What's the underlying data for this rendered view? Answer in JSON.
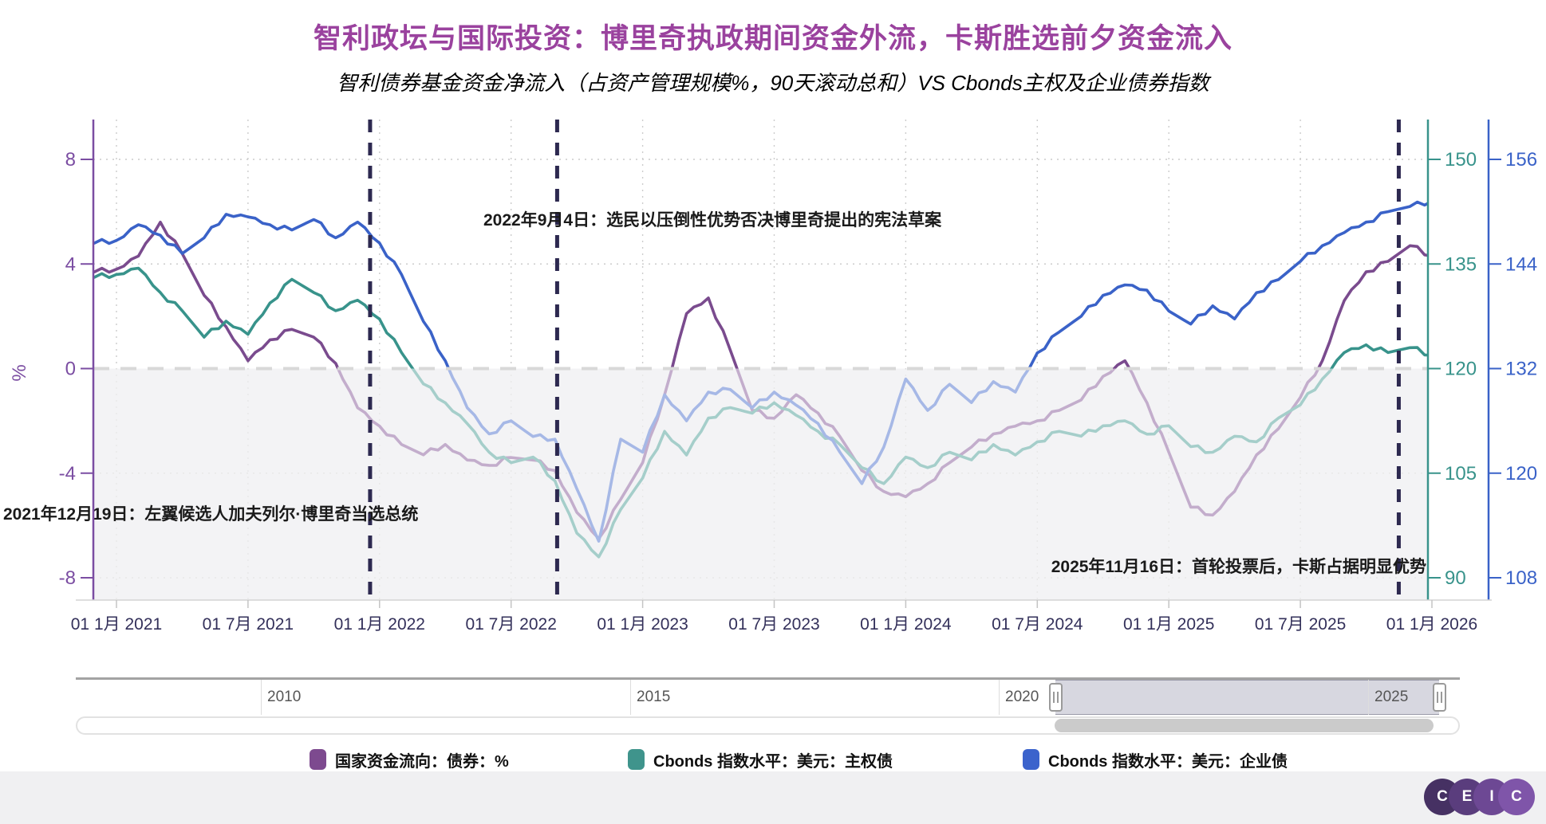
{
  "header": {
    "title": "智利政坛与国际投资：博里奇执政期间资金外流，卡斯胜选前夕资金流入",
    "subtitle": "智利债券基金资金净流入（占资产管理规模%，90天滚动总和）VS Cbonds主权及企业债券指数"
  },
  "chart_data": {
    "type": "line",
    "title": "智利债券基金资金净流入 VS Cbonds 指数",
    "months": [
      "2020-12",
      "2021-01",
      "2021-02",
      "2021-03",
      "2021-04",
      "2021-05",
      "2021-06",
      "2021-07",
      "2021-08",
      "2021-09",
      "2021-10",
      "2021-11",
      "2021-12",
      "2022-01",
      "2022-02",
      "2022-03",
      "2022-04",
      "2022-05",
      "2022-06",
      "2022-07",
      "2022-08",
      "2022-09",
      "2022-10",
      "2022-11",
      "2022-12",
      "2023-01",
      "2023-02",
      "2023-03",
      "2023-04",
      "2023-05",
      "2023-06",
      "2023-07",
      "2023-08",
      "2023-09",
      "2023-10",
      "2023-11",
      "2023-12",
      "2024-01",
      "2024-02",
      "2024-03",
      "2024-04",
      "2024-05",
      "2024-06",
      "2024-07",
      "2024-08",
      "2024-09",
      "2024-10",
      "2024-11",
      "2024-12",
      "2025-01",
      "2025-02",
      "2025-03",
      "2025-04",
      "2025-05",
      "2025-06",
      "2025-07",
      "2025-08",
      "2025-09",
      "2025-10",
      "2025-11",
      "2025-12",
      "2026-01"
    ],
    "series": [
      {
        "name": "国家资金流向：债券：%",
        "axis": "left",
        "color": "#7a4b8e",
        "values": [
          3.7,
          3.8,
          4.3,
          5.6,
          4.4,
          2.8,
          1.6,
          0.3,
          1.1,
          1.5,
          1.2,
          0.2,
          -1.5,
          -2.2,
          -2.9,
          -3.3,
          -2.9,
          -3.5,
          -3.7,
          -3.4,
          -3.5,
          -3.9,
          -5.5,
          -6.5,
          -5.0,
          -3.6,
          -1.0,
          2.1,
          2.7,
          0.7,
          -1.6,
          -1.9,
          -1.0,
          -1.7,
          -2.6,
          -3.9,
          -4.7,
          -4.9,
          -4.4,
          -3.6,
          -3.0,
          -2.5,
          -2.2,
          -2.0,
          -1.6,
          -1.2,
          -0.3,
          0.3,
          -1.3,
          -3.2,
          -5.3,
          -5.6,
          -4.7,
          -3.3,
          -2.3,
          -1.1,
          0.3,
          2.6,
          3.7,
          4.1,
          4.7,
          4.3
        ]
      },
      {
        "name": "Cbonds 指数水平：美元：主权债",
        "axis": "right_sovereign",
        "color": "#38938b",
        "values": [
          133.1,
          133.5,
          134.4,
          130.9,
          128.3,
          124.5,
          126.8,
          124.9,
          129.4,
          132.8,
          130.9,
          128.3,
          129.8,
          127.1,
          122.3,
          117.8,
          115.1,
          112.1,
          108.0,
          106.5,
          107.3,
          103.9,
          96.4,
          93.0,
          99.8,
          104.3,
          111.0,
          107.6,
          112.9,
          114.4,
          113.6,
          115.1,
          113.3,
          111.0,
          109.1,
          105.8,
          103.5,
          107.3,
          105.8,
          108.0,
          106.9,
          109.1,
          107.6,
          109.5,
          111.0,
          110.3,
          111.8,
          112.5,
          110.6,
          111.8,
          108.8,
          108.0,
          110.3,
          109.5,
          112.9,
          114.8,
          118.5,
          122.3,
          123.4,
          122.3,
          123.0,
          121.9
        ]
      },
      {
        "name": "Cbonds 指数水平：美元：企业债",
        "axis": "right_corporate",
        "color": "#3a62c8",
        "values": [
          146.4,
          146.7,
          148.5,
          147.3,
          145.2,
          147.0,
          149.7,
          149.4,
          148.5,
          147.9,
          149.1,
          147.0,
          148.8,
          146.4,
          142.8,
          137.4,
          132.9,
          127.5,
          124.5,
          126.0,
          124.2,
          123.9,
          118.2,
          112.2,
          123.9,
          122.4,
          129.0,
          126.0,
          129.3,
          129.6,
          127.5,
          129.3,
          127.8,
          125.7,
          122.4,
          118.8,
          123.0,
          130.8,
          127.2,
          130.2,
          128.1,
          130.5,
          129.3,
          133.8,
          136.2,
          138.0,
          140.4,
          141.6,
          141.0,
          138.6,
          137.1,
          139.2,
          137.7,
          140.7,
          142.2,
          144.3,
          146.1,
          147.6,
          148.8,
          150.0,
          150.6,
          151.2
        ]
      }
    ],
    "axes": {
      "left": {
        "label": "%",
        "ticks": [
          "8",
          "4",
          "0",
          "-4",
          "-8"
        ],
        "max": 8,
        "min": -8,
        "color": "#7b4da2"
      },
      "right_sovereign": {
        "label": "",
        "ticks": [
          "150",
          "135",
          "120",
          "105",
          "90"
        ],
        "max": 150,
        "min": 90,
        "color": "#38938b"
      },
      "right_corporate": {
        "label": "",
        "ticks": [
          "156",
          "144",
          "132",
          "120",
          "108"
        ],
        "max": 156,
        "min": 108,
        "color": "#3a62c8"
      }
    },
    "x_tick_labels": [
      "01 1月 2021",
      "01 7月 2021",
      "01 1月 2022",
      "01 7月 2022",
      "01 1月 2023",
      "01 7月 2023",
      "01 1月 2024",
      "01 7月 2024",
      "01 1月 2025",
      "01 7月 2025",
      "01 1月 2026"
    ],
    "events": [
      {
        "date": "2021-12-19",
        "t": 2021.964,
        "label": "2021年12月19日：左翼候选人加夫列尔·博里奇当选总统"
      },
      {
        "date": "2022-09-04",
        "t": 2022.675,
        "label": "2022年9月4日：选民以压倒性优势否决博里奇提出的宪法草案"
      },
      {
        "date": "2025-11-16",
        "t": 2025.874,
        "label": "2025年11月16日：首轮投票后，卡斯占据明显优势"
      }
    ],
    "grid": true,
    "legend_position": "bottom",
    "style": {
      "event_line_color": "#2d2950",
      "zero_line_color": "#d8d8d8",
      "grid_color": "#cccccc",
      "negative_region_color": "#e4e4e8",
      "x_label_color": "#33305a",
      "annotation_color": "#1a1a1a"
    }
  },
  "navigator": {
    "range_labels": [
      "2010",
      "2015",
      "2020",
      "2025"
    ]
  },
  "legend": {
    "items": [
      {
        "label": "国家资金流向：债券：%",
        "color": "#7d4a8f"
      },
      {
        "label": "Cbonds 指数水平：美元：主权债",
        "color": "#3f948c"
      },
      {
        "label": "Cbonds 指数水平：美元：企业债",
        "color": "#3b63cc"
      }
    ]
  },
  "footer": {
    "logo_letters": [
      "C",
      "E",
      "I",
      "C"
    ],
    "logo_colors": [
      "#463163",
      "#5a3d7d",
      "#6d4894",
      "#7f55a9"
    ]
  }
}
